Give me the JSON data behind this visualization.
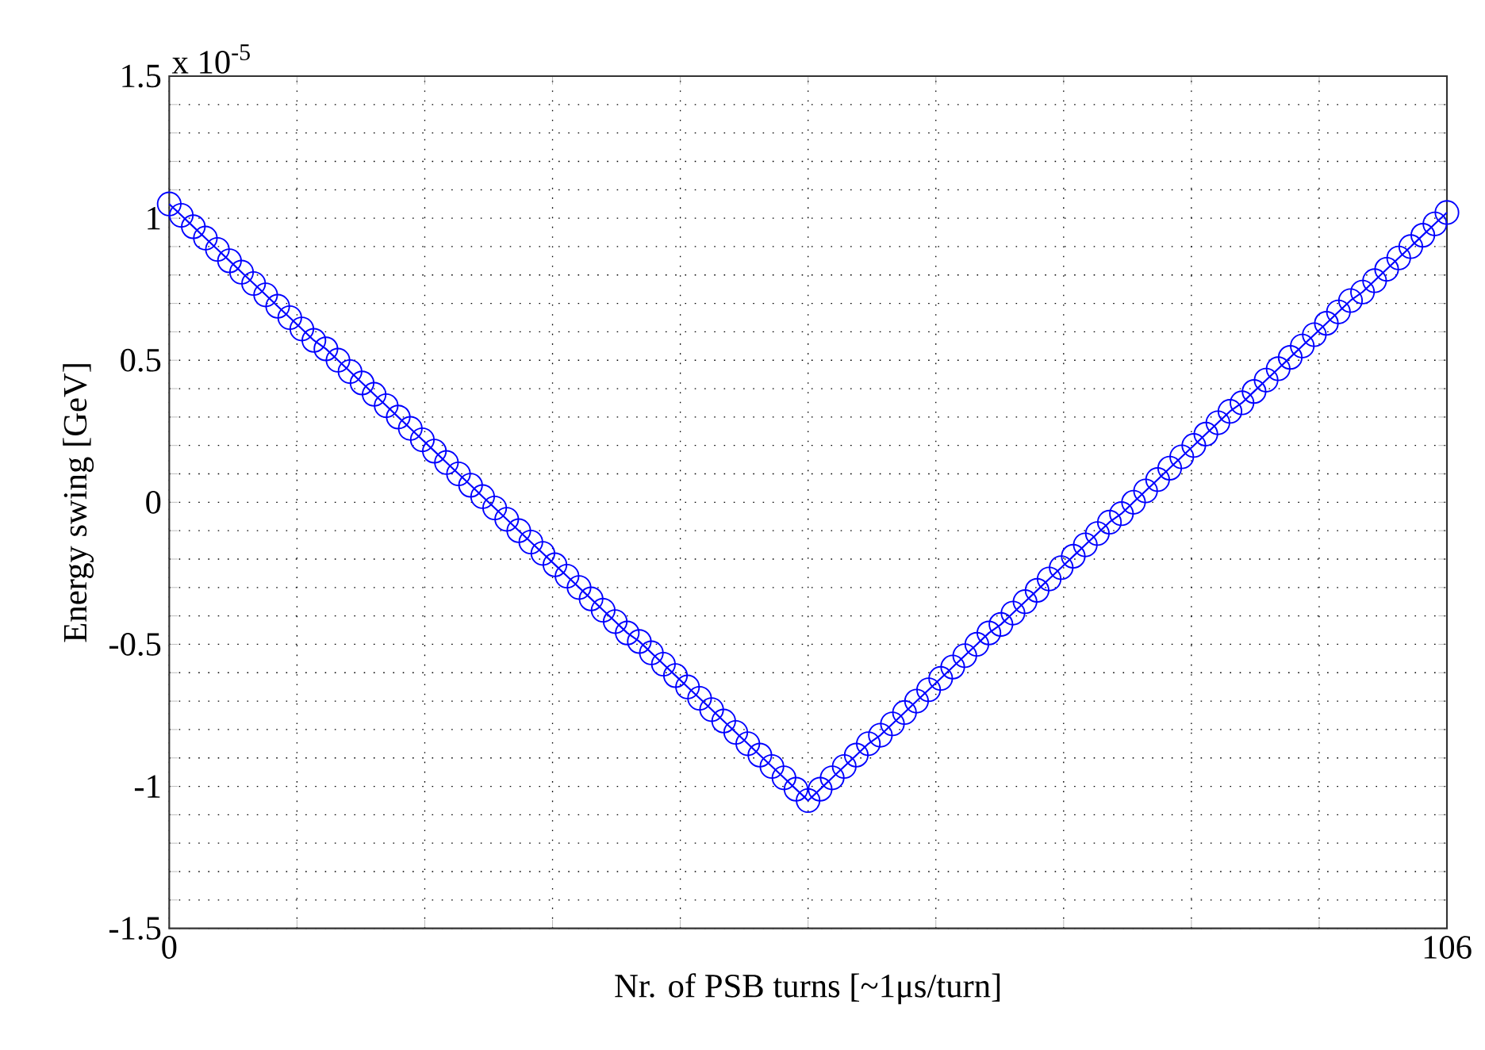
{
  "chart_data": {
    "type": "line",
    "xlabel": "Nr. of PSB turns [~1μs/turn]",
    "ylabel": "Energy swing [GeV]",
    "annotations": [
      "x 10$^{-5}$"
    ],
    "x": [
      0,
      1,
      2,
      3,
      4,
      5,
      6,
      7,
      8,
      9,
      10,
      11,
      12,
      13,
      14,
      15,
      16,
      17,
      18,
      19,
      20,
      21,
      22,
      23,
      24,
      25,
      26,
      27,
      28,
      29,
      30,
      31,
      32,
      33,
      34,
      35,
      36,
      37,
      38,
      39,
      40,
      41,
      42,
      43,
      44,
      45,
      46,
      47,
      48,
      49,
      50,
      51,
      52,
      53,
      54,
      55,
      56,
      57,
      58,
      59,
      60,
      61,
      62,
      63,
      64,
      65,
      66,
      67,
      68,
      69,
      70,
      71,
      72,
      73,
      74,
      75,
      76,
      77,
      78,
      79,
      80,
      81,
      82,
      83,
      84,
      85,
      86,
      87,
      88,
      89,
      90,
      91,
      92,
      93,
      94,
      95,
      96,
      97,
      98,
      99,
      100,
      101,
      102,
      103,
      104,
      105,
      106
    ],
    "series": [
      {
        "color": "#0000ff",
        "values": [
          1.05,
          1.01,
          0.97,
          0.93,
          0.89,
          0.85,
          0.81,
          0.77,
          0.73,
          0.69,
          0.65,
          0.61,
          0.57,
          0.54,
          0.5,
          0.46,
          0.42,
          0.38,
          0.34,
          0.3,
          0.26,
          0.22,
          0.18,
          0.14,
          0.1,
          0.06,
          0.02,
          -0.02,
          -0.06,
          -0.1,
          -0.14,
          -0.18,
          -0.22,
          -0.26,
          -0.3,
          -0.34,
          -0.38,
          -0.42,
          -0.46,
          -0.49,
          -0.53,
          -0.57,
          -0.61,
          -0.65,
          -0.69,
          -0.73,
          -0.77,
          -0.81,
          -0.85,
          -0.89,
          -0.93,
          -0.97,
          -1.01,
          -1.05,
          -1.01,
          -0.97,
          -0.93,
          -0.89,
          -0.85,
          -0.82,
          -0.78,
          -0.74,
          -0.7,
          -0.66,
          -0.62,
          -0.58,
          -0.54,
          -0.5,
          -0.46,
          -0.43,
          -0.39,
          -0.35,
          -0.31,
          -0.27,
          -0.23,
          -0.19,
          -0.15,
          -0.11,
          -0.07,
          -0.04,
          0.0,
          0.04,
          0.08,
          0.12,
          0.16,
          0.2,
          0.24,
          0.28,
          0.32,
          0.35,
          0.39,
          0.43,
          0.47,
          0.51,
          0.55,
          0.59,
          0.63,
          0.67,
          0.71,
          0.74,
          0.78,
          0.82,
          0.86,
          0.9,
          0.94,
          0.98,
          1.02
        ]
      }
    ],
    "xlim": [
      0,
      106
    ],
    "ylim": [
      -1.5,
      1.5
    ],
    "xticks": [
      0,
      {
        "value": 10.6,
        "label": null
      },
      {
        "value": 21.2,
        "label": null
      },
      {
        "value": 31.8,
        "label": null
      },
      {
        "value": 42.4,
        "label": null
      },
      {
        "value": 53,
        "label": null
      },
      {
        "value": 63.6,
        "label": null
      },
      {
        "value": 74.2,
        "label": null
      },
      {
        "value": 84.8,
        "label": null
      },
      {
        "value": 95.4,
        "label": null
      },
      106
    ],
    "yticks": [
      -1.5,
      {
        "value": -1.4,
        "label": null
      },
      {
        "value": -1.3,
        "label": null
      },
      {
        "value": -1.2,
        "label": null
      },
      {
        "value": -1.1,
        "label": null
      },
      -1,
      {
        "value": -0.9,
        "label": null
      },
      {
        "value": -0.8,
        "label": null
      },
      {
        "value": -0.7,
        "label": null
      },
      {
        "value": -0.6,
        "label": null
      },
      -0.5,
      {
        "value": -0.4,
        "label": null
      },
      {
        "value": -0.3,
        "label": null
      },
      {
        "value": -0.2,
        "label": null
      },
      {
        "value": -0.1,
        "label": null
      },
      0,
      {
        "value": 0.1,
        "label": null
      },
      {
        "value": 0.2,
        "label": null
      },
      {
        "value": 0.3,
        "label": null
      },
      {
        "value": 0.4,
        "label": null
      },
      0.5,
      {
        "value": 0.6,
        "label": null
      },
      {
        "value": 0.7,
        "label": null
      },
      {
        "value": 0.8,
        "label": null
      },
      {
        "value": 0.9,
        "label": null
      },
      1,
      {
        "value": 1.1,
        "label": null
      },
      {
        "value": 1.2,
        "label": null
      },
      {
        "value": 1.3,
        "label": null
      },
      {
        "value": 1.4,
        "label": null
      },
      1.5
    ],
    "grid": true,
    "marker": "circle",
    "line_style": "solid"
  }
}
